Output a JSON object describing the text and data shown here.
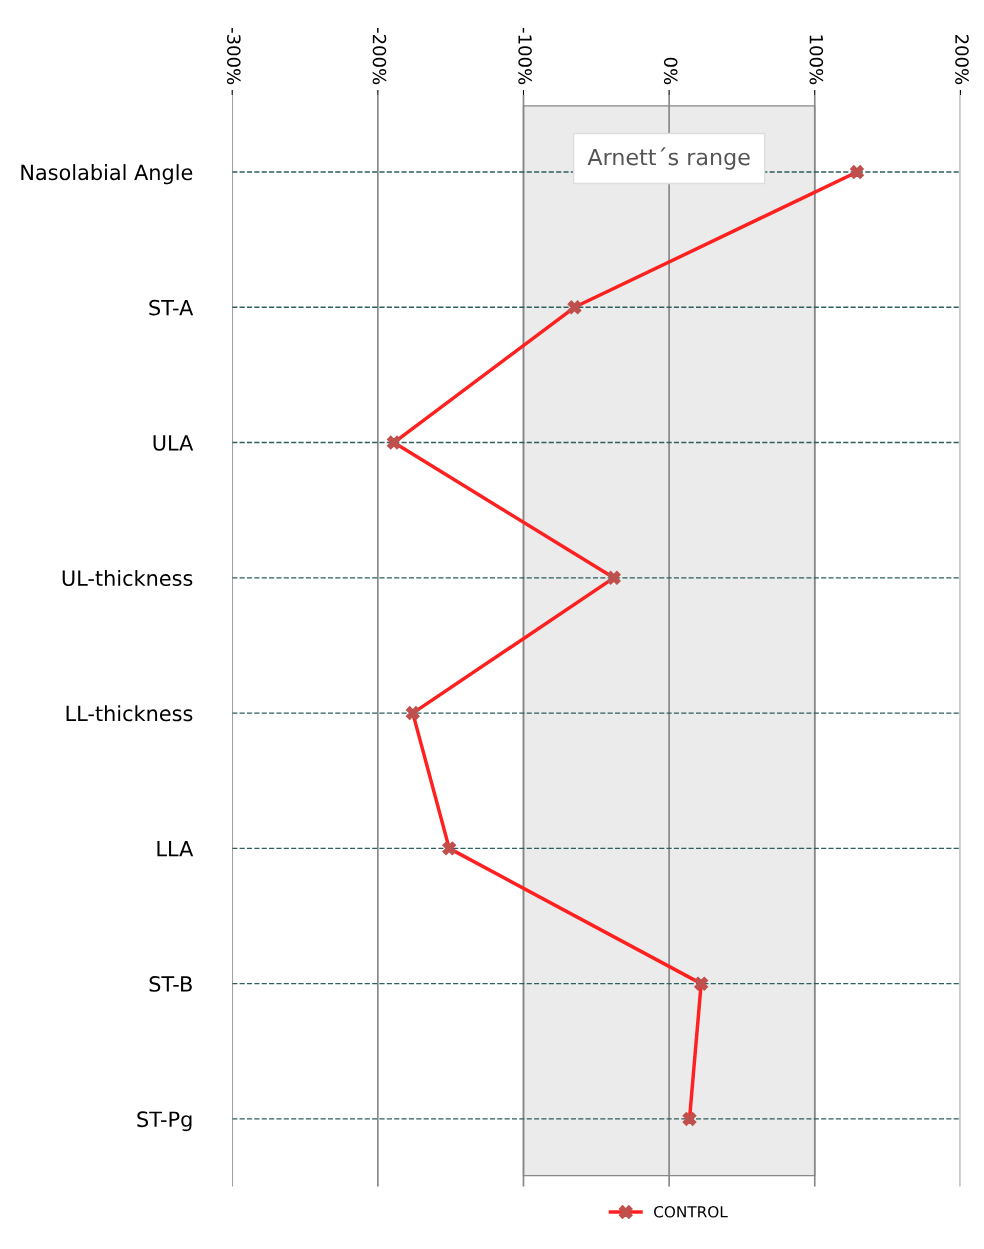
{
  "chart_data": {
    "type": "line",
    "orientation": "horizontal",
    "categories": [
      "Nasolabial Angle",
      "ST-A",
      "ULA",
      "UL-thickness",
      "LL-thickness",
      "LLA",
      "ST-B",
      "ST-Pg"
    ],
    "series": [
      {
        "name": "CONTROL",
        "color": "#ff2020",
        "values": [
          129,
          -65,
          -189,
          -38,
          -176,
          -151,
          22,
          14
        ]
      }
    ],
    "xlim": [
      -300,
      200
    ],
    "xticks": [
      {
        "value": -300,
        "label": "-300%"
      },
      {
        "value": -200,
        "label": "-200%"
      },
      {
        "value": -100,
        "label": "-100%"
      },
      {
        "value": 0,
        "label": "0%"
      },
      {
        "value": 100,
        "label": "100%"
      },
      {
        "value": 200,
        "label": "200%"
      }
    ],
    "bands": [
      {
        "axis": "x",
        "from": -100,
        "to": 100,
        "label": "Arnett´s range",
        "color": "#ebebeb"
      }
    ],
    "grid": true,
    "legend": "bottom",
    "marker": "cross",
    "line_style": "solid"
  }
}
